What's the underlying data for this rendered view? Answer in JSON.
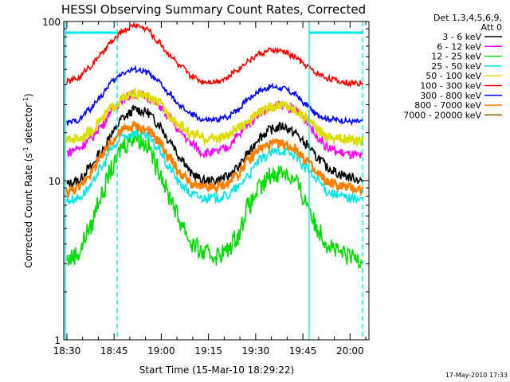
{
  "chart_data": {
    "type": "line",
    "title": "HESSI Observing Summary Count Rates, Corrected",
    "xlabel": "Start Time (15-Mar-10 18:29:22)",
    "ylabel": "Corrected Count Rate (s",
    "ylabel_sup": "-1",
    "ylabel_tail": " detector",
    "ylabel_sup2": "-1",
    "ylabel_end": ")",
    "y_scale": "log",
    "ylim": [
      1,
      100
    ],
    "xlim_minutes": [
      -1,
      96
    ],
    "x_ticks": [
      {
        "label": "18:30",
        "value": 0
      },
      {
        "label": "18:45",
        "value": 15
      },
      {
        "label": "19:00",
        "value": 30
      },
      {
        "label": "19:15",
        "value": 45
      },
      {
        "label": "19:30",
        "value": 60
      },
      {
        "label": "19:45",
        "value": 75
      },
      {
        "label": "20:00",
        "value": 90
      }
    ],
    "y_ticks": [
      {
        "label": "1",
        "value": 1
      },
      {
        "label": "10",
        "value": 10
      },
      {
        "label": "100",
        "value": 100
      }
    ],
    "legend_header": "Det 1,3,4,5,6,9,",
    "legend_header2": "Att 0",
    "legend_placement": "right",
    "timestamp": "17-May-2010 17:33",
    "solid_markers_minutes": [
      -0.5,
      77
    ],
    "dashed_markers_minutes": [
      16,
      94
    ],
    "top_bar_ranges_minutes": [
      [
        -0.5,
        16
      ],
      [
        77,
        94
      ]
    ],
    "series": [
      {
        "name": "3 - 6 keV",
        "color": "#000000",
        "values": [
          9.5,
          10,
          12,
          15,
          20,
          25,
          28,
          27,
          23,
          18,
          14,
          11,
          10,
          10,
          10.5,
          12,
          15,
          19,
          21,
          22,
          20,
          17,
          14,
          12,
          11,
          10.5,
          10
        ]
      },
      {
        "name": "6 - 12 keV",
        "color": "#ff00ff",
        "values": [
          15,
          16,
          18,
          22,
          28,
          33,
          35,
          34,
          30,
          25,
          20,
          17,
          15,
          15,
          16,
          19,
          23,
          27,
          29,
          30,
          28,
          24,
          19,
          16,
          15,
          14.5,
          14
        ]
      },
      {
        "name": "12 - 25 keV",
        "color": "#00dd00",
        "values": [
          3.2,
          3.5,
          5,
          8,
          12,
          17,
          19,
          17,
          12,
          8,
          5.5,
          4,
          3.5,
          3.4,
          3.6,
          4.5,
          7,
          9,
          11,
          11.5,
          10,
          7.5,
          5,
          4,
          3.5,
          3.3,
          3.3
        ]
      },
      {
        "name": "25 - 50 keV",
        "color": "#00e5e5",
        "values": [
          7.5,
          7.8,
          9,
          12,
          16,
          19,
          20,
          19,
          16,
          12,
          9.5,
          8.2,
          7.8,
          7.8,
          8,
          9,
          11,
          13.5,
          15,
          15.5,
          14.5,
          12,
          10,
          8.5,
          8,
          7.8,
          7.6
        ]
      },
      {
        "name": "50 - 100 keV",
        "color": "#dddd00",
        "values": [
          18,
          18.5,
          20,
          24,
          29,
          33,
          35,
          34,
          31,
          26,
          22,
          19.5,
          18.5,
          18.5,
          19,
          21,
          24,
          27,
          29,
          30,
          28,
          25,
          21,
          19,
          18.5,
          18,
          18
        ]
      },
      {
        "name": "100 - 300 keV",
        "color": "#ff0000",
        "values": [
          42,
          44,
          52,
          62,
          75,
          88,
          95,
          90,
          75,
          62,
          52,
          45,
          42,
          42,
          44,
          50,
          57,
          63,
          66,
          65,
          60,
          53,
          47,
          44,
          42,
          41,
          41
        ]
      },
      {
        "name": "300 - 800 keV",
        "color": "#0000ff",
        "values": [
          23,
          24,
          28,
          34,
          42,
          48,
          50,
          48,
          42,
          35,
          29,
          26,
          24,
          24,
          25,
          28,
          33,
          37,
          39,
          38,
          35,
          30,
          26,
          24.5,
          24,
          23.5,
          23.5
        ]
      },
      {
        "name": "800 - 7000 keV",
        "color": "#ff8000",
        "values": [
          8.5,
          9,
          11,
          14,
          18,
          21,
          22,
          21,
          18,
          14,
          11,
          9.5,
          9,
          9,
          9.5,
          11,
          13.5,
          16,
          17,
          17,
          16,
          13.5,
          11,
          9.8,
          9.3,
          9,
          8.8
        ]
      },
      {
        "name": "7000 - 20000 keV",
        "color": "#806000",
        "values": []
      }
    ]
  }
}
